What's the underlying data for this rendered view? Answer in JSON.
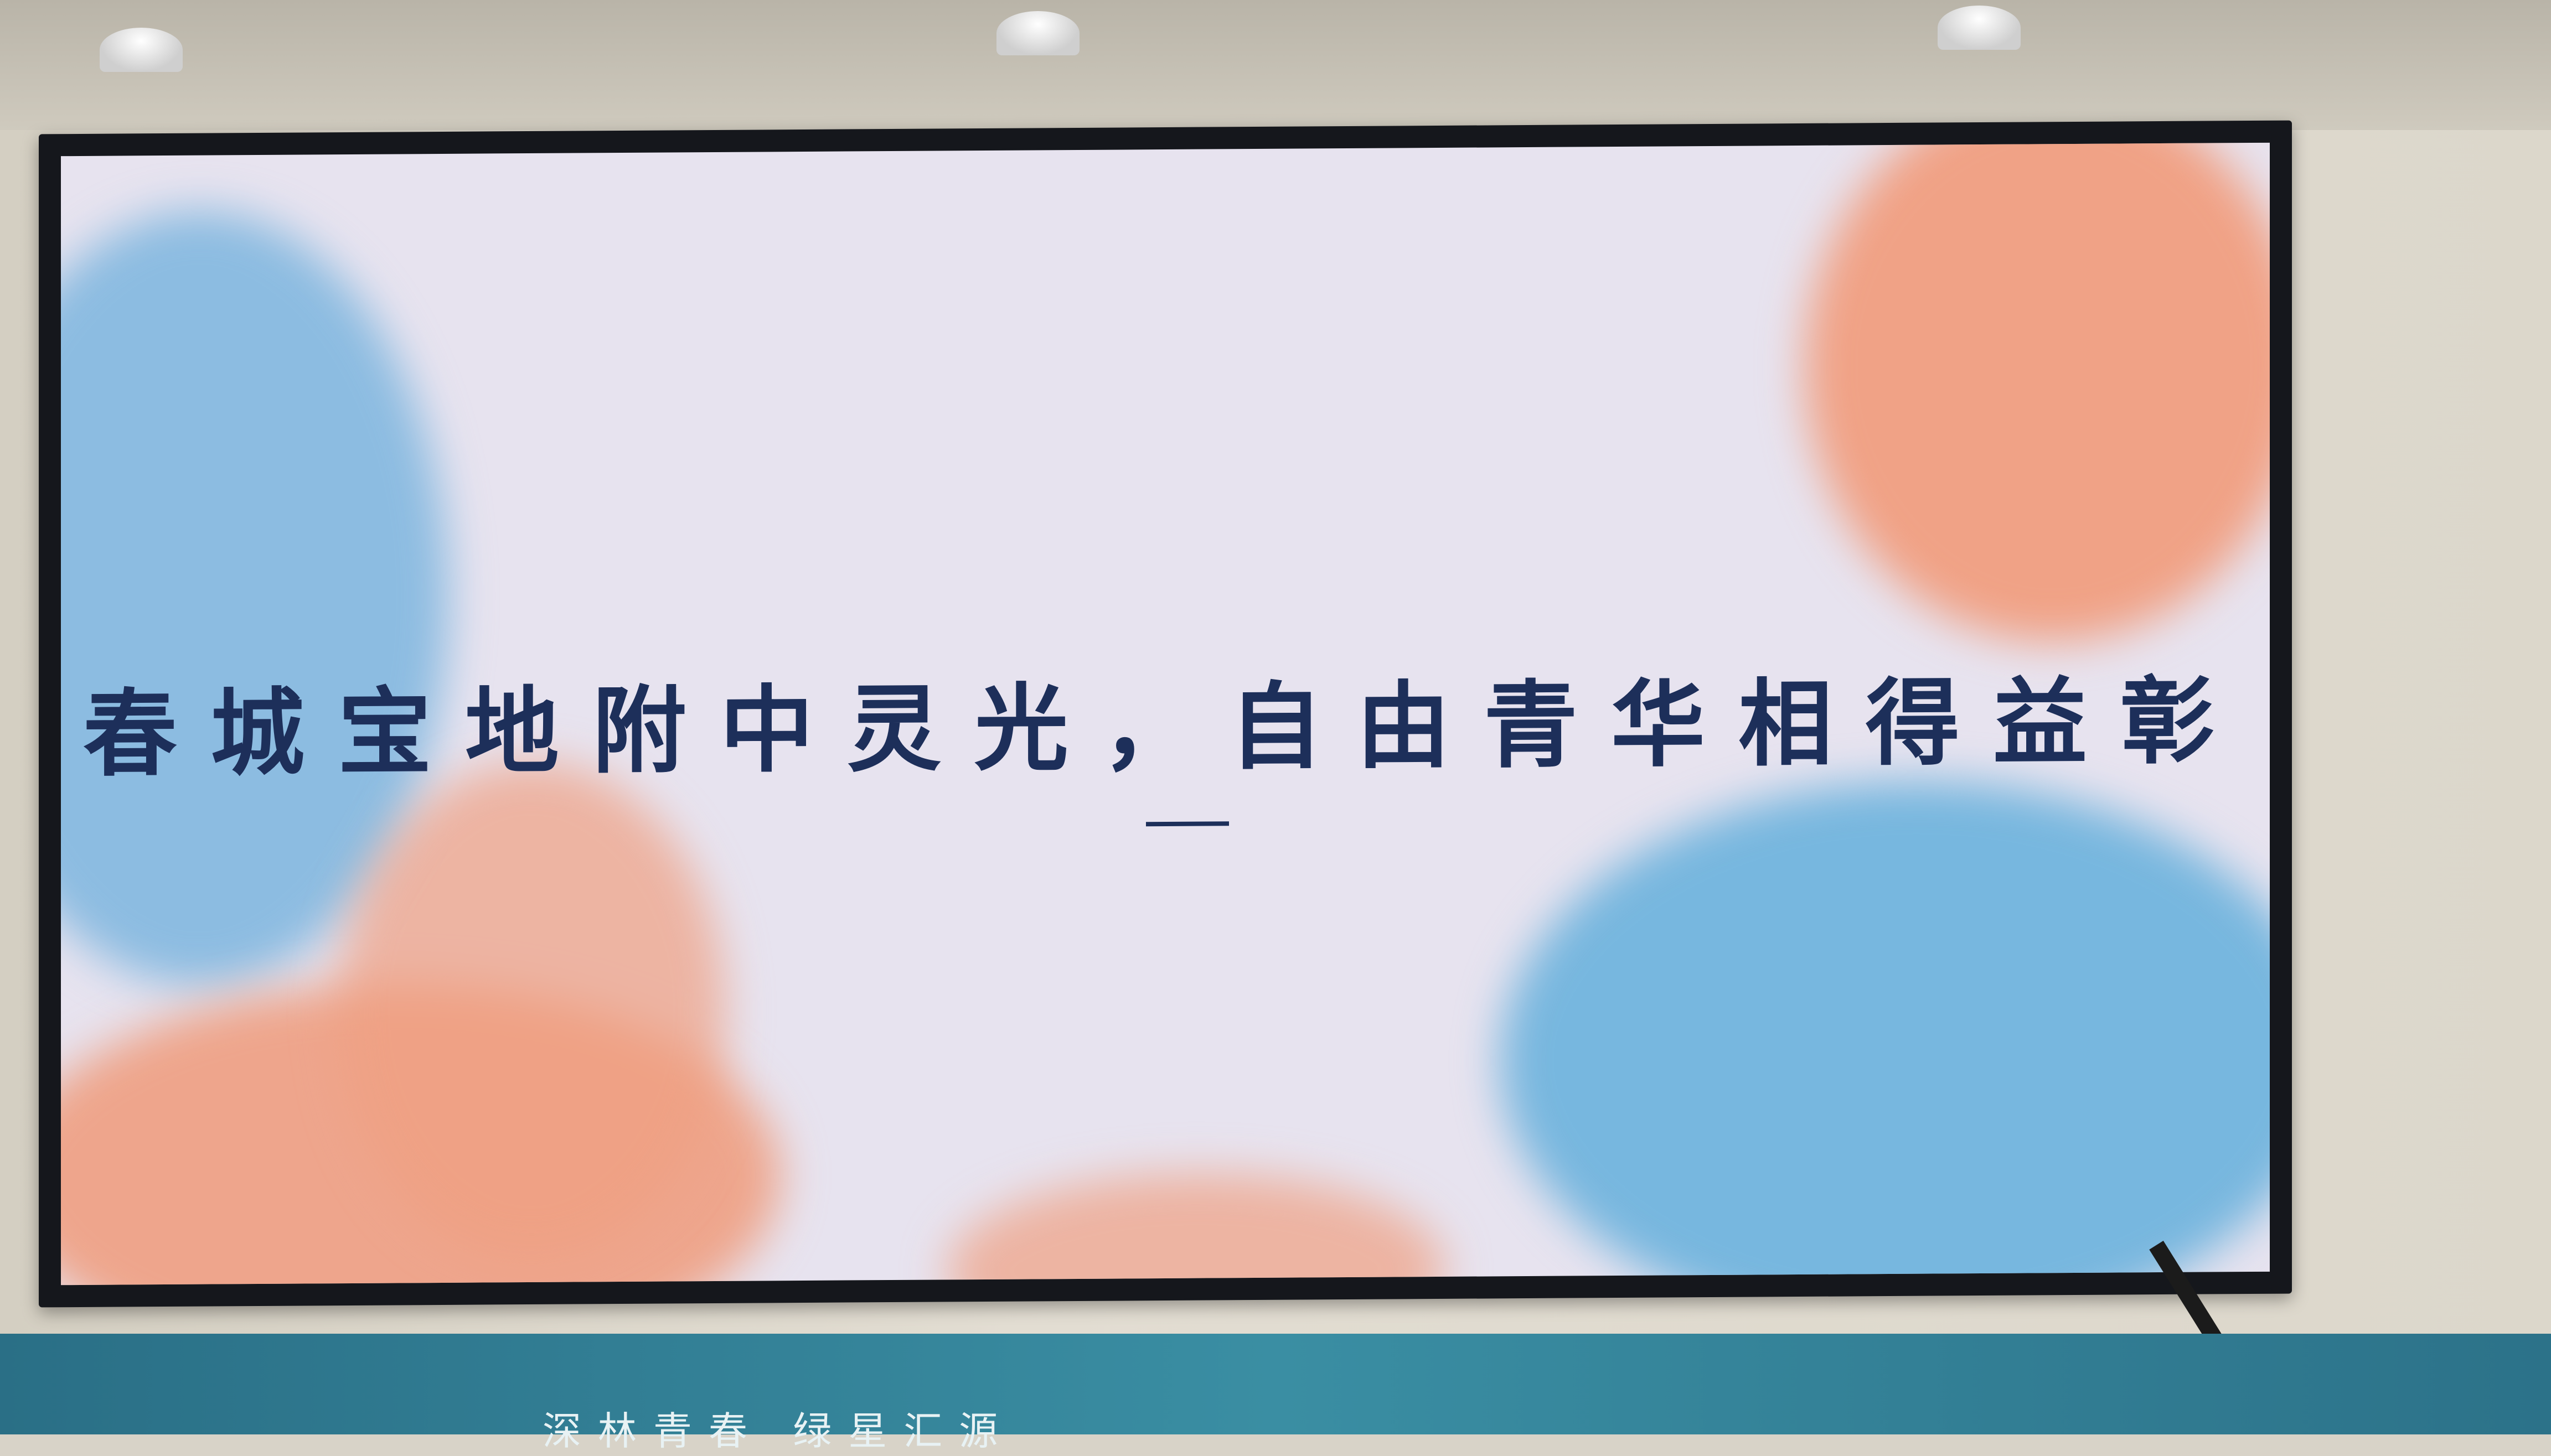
{
  "screen": {
    "title": "春城宝地附中灵光，自由青华相得益彰",
    "decoration": "—"
  },
  "banner": {
    "text": "深林青春 绿星汇源"
  },
  "colors": {
    "title": "#1d2f5a",
    "wash_blue": "#6fb3df",
    "wash_orange": "#f3a27f",
    "banner": "#2f7f95"
  },
  "icons": [
    "ceiling-lamp-icon",
    "camera-arm-icon"
  ]
}
